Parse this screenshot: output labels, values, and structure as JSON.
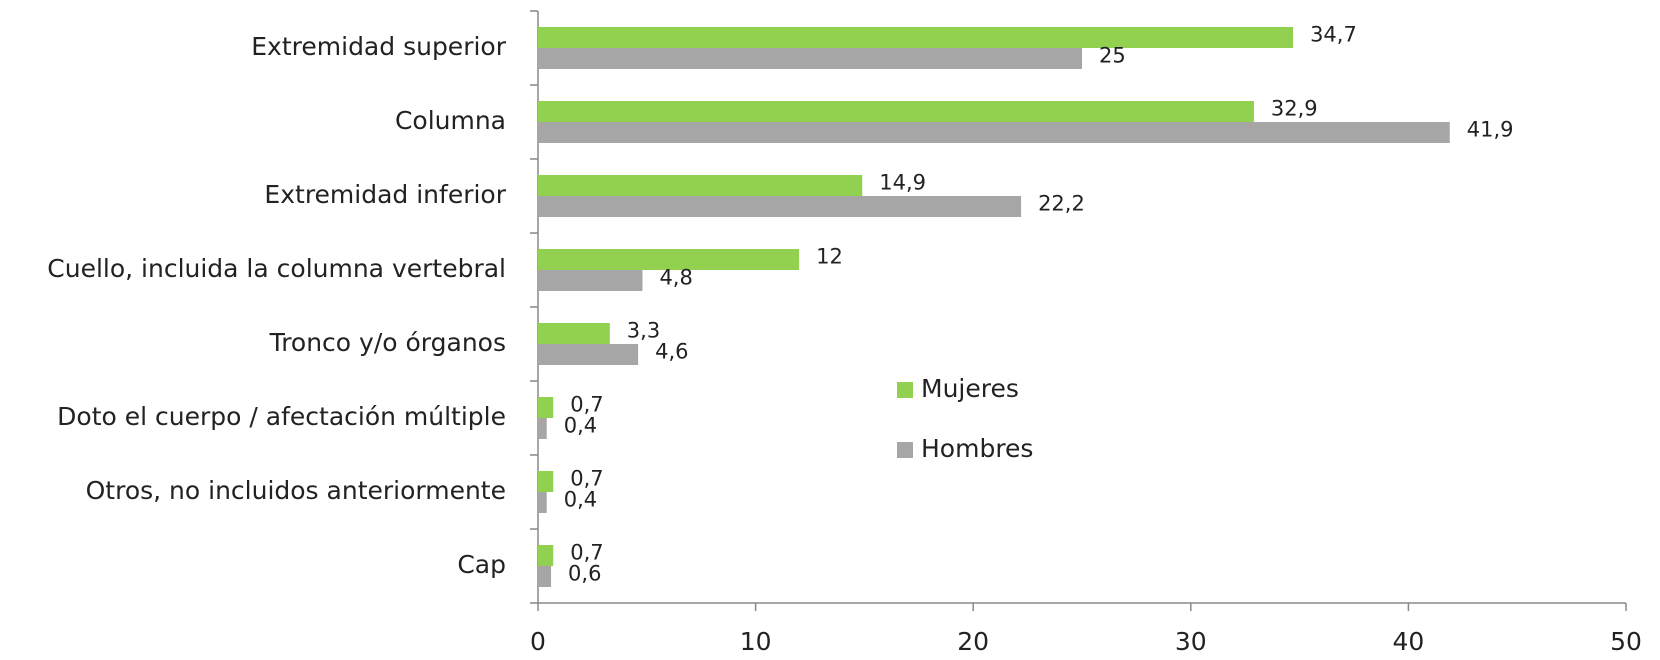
{
  "chart_data": {
    "type": "bar",
    "orientation": "horizontal",
    "categories": [
      "Extremidad superior",
      "Columna",
      "Extremidad inferior",
      "Cuello, incluida la  columna vertebral",
      "Tronco y/o órganos",
      "Doto el cuerpo / afectación múltiple",
      "Otros, no incluidos anteriormente",
      "Cap"
    ],
    "series": [
      {
        "name": "Mujeres",
        "color": "#92d050",
        "values": [
          34.7,
          32.9,
          14.9,
          12,
          3.3,
          0.7,
          0.7,
          0.7
        ],
        "value_labels": [
          "34,7",
          "32,9",
          "14,9",
          "12",
          "3,3",
          "0,7",
          "0,7",
          "0,7"
        ]
      },
      {
        "name": "Hombres",
        "color": "#a6a6a6",
        "values": [
          25,
          41.9,
          22.2,
          4.8,
          4.6,
          0.4,
          0.4,
          0.6
        ],
        "value_labels": [
          "25",
          "41,9",
          "22,2",
          "4,8",
          "4,6",
          "0,4",
          "0,4",
          "0,6"
        ]
      }
    ],
    "xlim": [
      0,
      50
    ],
    "xticks": [
      0,
      10,
      20,
      30,
      40,
      50
    ],
    "legend": "center"
  }
}
